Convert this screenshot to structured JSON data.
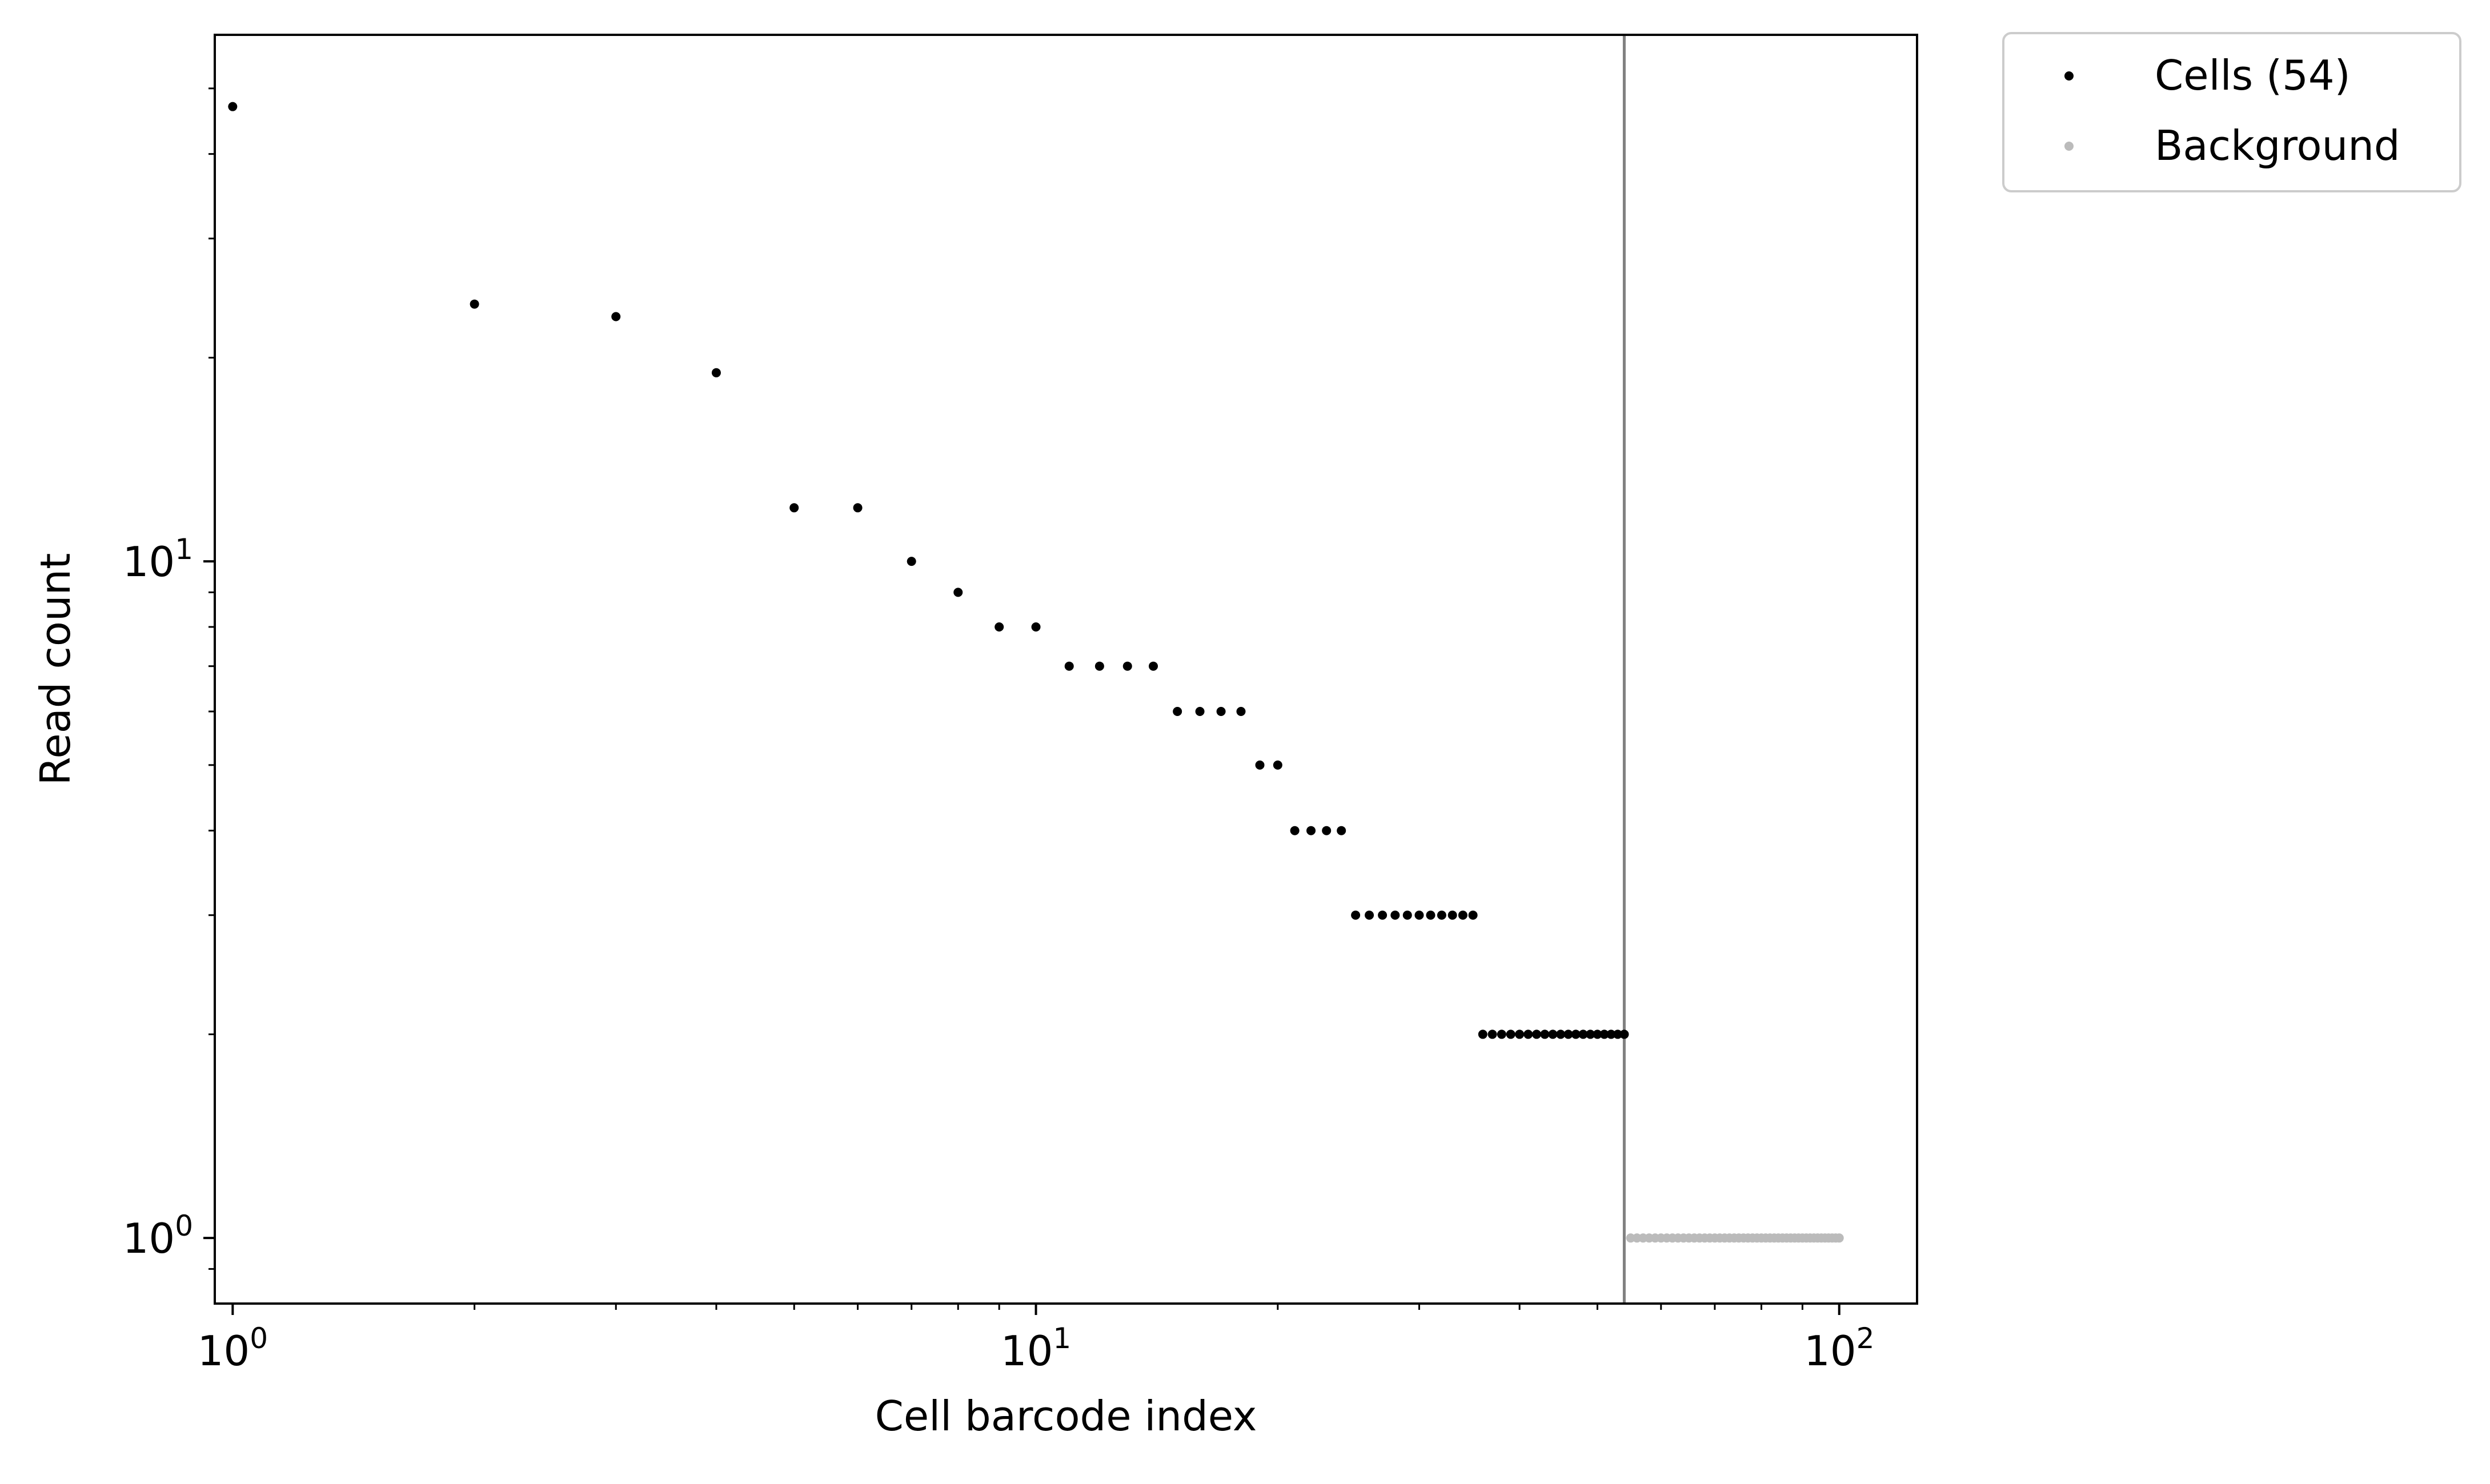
{
  "chart_data": {
    "type": "scatter",
    "title": "",
    "xlabel": "Cell barcode index",
    "ylabel": "Read count",
    "xscale": "log",
    "yscale": "log",
    "xlim": [
      0.95,
      125
    ],
    "ylim": [
      0.8,
      60
    ],
    "grid": false,
    "legend_position": "outside-top-right",
    "x_ticks": [
      {
        "value": 1,
        "base": "10",
        "exp": "0"
      },
      {
        "value": 10,
        "base": "10",
        "exp": "1"
      },
      {
        "value": 100,
        "base": "10",
        "exp": "2"
      }
    ],
    "y_ticks": [
      {
        "value": 1,
        "base": "10",
        "exp": "0"
      },
      {
        "value": 10,
        "base": "10",
        "exp": "1"
      }
    ],
    "threshold_x": 54,
    "series": [
      {
        "name": "Cells (54)",
        "color": "#000000",
        "x": [
          1,
          2,
          3,
          4,
          5,
          6,
          7,
          8,
          9,
          10,
          11,
          12,
          13,
          14,
          15,
          16,
          17,
          18,
          19,
          20,
          21,
          22,
          23,
          24,
          25,
          26,
          27,
          28,
          29,
          30,
          31,
          32,
          33,
          34,
          35,
          36,
          37,
          38,
          39,
          40,
          41,
          42,
          43,
          44,
          45,
          46,
          47,
          48,
          49,
          50,
          51,
          52,
          53,
          54
        ],
        "y": [
          47,
          24,
          23,
          19,
          12,
          12,
          10,
          9,
          8,
          8,
          7,
          7,
          7,
          7,
          6,
          6,
          6,
          6,
          5,
          5,
          4,
          4,
          4,
          4,
          3,
          3,
          3,
          3,
          3,
          3,
          3,
          3,
          3,
          3,
          3,
          2,
          2,
          2,
          2,
          2,
          2,
          2,
          2,
          2,
          2,
          2,
          2,
          2,
          2,
          2,
          2,
          2,
          2,
          2
        ]
      },
      {
        "name": "Background",
        "color": "#bbbbbb",
        "x_range": [
          55,
          100
        ],
        "y_constant": 1
      }
    ]
  }
}
